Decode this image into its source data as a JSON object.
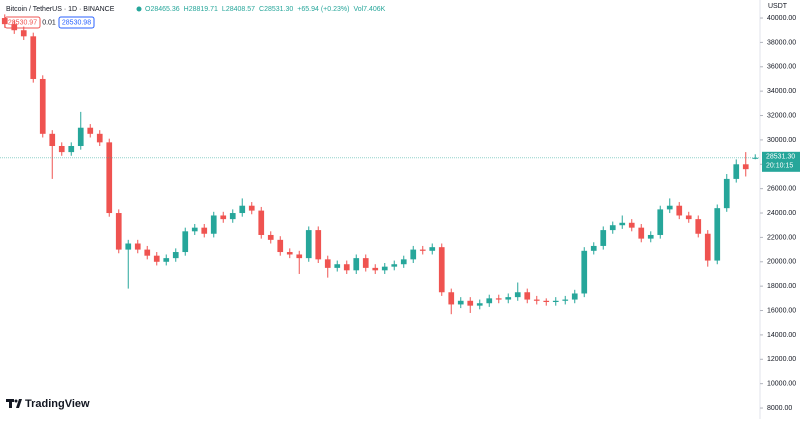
{
  "chart_data": {
    "type": "candlestick",
    "title": "Bitcoin / TetherUS · 1D · BINANCE",
    "ohlc_legend": [
      "O28465.36",
      "H28819.71",
      "L28408.57",
      "C28531.30",
      "+65.94 (+0.23%)",
      "Vol7.406K"
    ],
    "bid": "28530.97",
    "spread": "0.01",
    "ask": "28530.98",
    "close_label": "28531.30",
    "countdown": "20:10:15",
    "currency": "USDT",
    "brand": "TradingView",
    "up_color": "#26a69a",
    "down_color": "#ef5350",
    "ylim": [
      7100,
      41480
    ],
    "yticks": [
      {
        "value": 8000,
        "label": "8000.00"
      },
      {
        "value": 10000,
        "label": "10000.00"
      },
      {
        "value": 12000,
        "label": "12000.00"
      },
      {
        "value": 14000,
        "label": "14000.00"
      },
      {
        "value": 16000,
        "label": "16000.00"
      },
      {
        "value": 18000,
        "label": "18000.00"
      },
      {
        "value": 20000,
        "label": "20000.00"
      },
      {
        "value": 22000,
        "label": "22000.00"
      },
      {
        "value": 24000,
        "label": "24000.00"
      },
      {
        "value": 26000,
        "label": "26000.00"
      },
      {
        "value": 28000,
        "label": "28000.00"
      },
      {
        "value": 30000,
        "label": "30000.00"
      },
      {
        "value": 32000,
        "label": "32000.00"
      },
      {
        "value": 34000,
        "label": "34000.00"
      },
      {
        "value": 36000,
        "label": "36000.00"
      },
      {
        "value": 38000,
        "label": "38000.00"
      },
      {
        "value": 40000,
        "label": "40000.00"
      }
    ],
    "open": [
      40000,
      39500,
      39000,
      38500,
      35000,
      30500,
      29500,
      29000,
      29500,
      31000,
      30500,
      29800,
      24000,
      21000,
      21500,
      21000,
      20500,
      20000,
      20300,
      20800,
      22500,
      22800,
      22300,
      23800,
      23500,
      24000,
      24600,
      24200,
      22200,
      21800,
      20800,
      20600,
      20300,
      22600,
      20200,
      19500,
      19800,
      19300,
      20300,
      19500,
      19300,
      19600,
      19800,
      20200,
      21000,
      20900,
      21200,
      17500,
      16500,
      16800,
      16400,
      16600,
      17000,
      16900,
      17100,
      17500,
      16900,
      16800,
      16700,
      16800,
      16900,
      17400,
      20900,
      21300,
      22600,
      23000,
      23200,
      22800,
      21900,
      22200,
      24300,
      24600,
      23800,
      23500,
      22300,
      20100,
      24400,
      26800,
      28000,
      28465.36
    ],
    "high": [
      40300,
      39800,
      39300,
      38800,
      35300,
      30800,
      29800,
      29800,
      32300,
      31300,
      30800,
      30100,
      24300,
      21800,
      21800,
      21300,
      20800,
      20600,
      21100,
      22800,
      23100,
      23100,
      24100,
      24100,
      24300,
      25200,
      24900,
      24500,
      22500,
      22100,
      21100,
      20900,
      22900,
      22900,
      20500,
      20100,
      20100,
      20600,
      20600,
      19800,
      19900,
      20100,
      20500,
      21300,
      21300,
      21500,
      21500,
      17800,
      17100,
      17100,
      16900,
      17300,
      17300,
      17400,
      18300,
      17800,
      17200,
      17000,
      17100,
      17200,
      17700,
      21200,
      21600,
      22900,
      23300,
      23800,
      23500,
      23100,
      22500,
      24600,
      25200,
      24900,
      24100,
      23800,
      22600,
      24700,
      27200,
      28400,
      29000,
      28819.71
    ],
    "low": [
      39200,
      38700,
      38200,
      34700,
      30200,
      26800,
      28700,
      28700,
      29200,
      30200,
      29500,
      23700,
      20700,
      17800,
      20700,
      20200,
      19700,
      19700,
      20000,
      20500,
      22200,
      22000,
      22000,
      23200,
      23200,
      23700,
      23900,
      21900,
      21500,
      20500,
      20300,
      19000,
      20000,
      19900,
      18700,
      19200,
      19000,
      19000,
      19200,
      19000,
      19000,
      19300,
      19500,
      19900,
      20600,
      20600,
      17200,
      15700,
      16200,
      15800,
      16100,
      16300,
      16600,
      16600,
      16800,
      16600,
      16500,
      16400,
      16400,
      16500,
      16600,
      17100,
      20600,
      21000,
      22300,
      22700,
      22500,
      21600,
      21600,
      21900,
      24000,
      23500,
      23200,
      22000,
      19600,
      19800,
      24100,
      26500,
      27000,
      28408.57
    ],
    "close": [
      39500,
      39000,
      38500,
      35000,
      30500,
      29500,
      29000,
      29500,
      31000,
      30500,
      29800,
      24000,
      21000,
      21500,
      21000,
      20500,
      20000,
      20300,
      20800,
      22500,
      22800,
      22300,
      23800,
      23500,
      24000,
      24600,
      24200,
      22200,
      21800,
      20800,
      20600,
      20300,
      22600,
      20200,
      19500,
      19800,
      19300,
      20300,
      19500,
      19300,
      19600,
      19800,
      20200,
      21000,
      20900,
      21200,
      17500,
      16500,
      16800,
      16400,
      16600,
      17000,
      16900,
      17100,
      17500,
      16900,
      16800,
      16700,
      16800,
      16900,
      17400,
      20900,
      21300,
      22600,
      23000,
      23200,
      22800,
      21900,
      22200,
      24300,
      24600,
      23800,
      23500,
      22300,
      20100,
      24400,
      26800,
      28000,
      27600,
      28531.3
    ]
  }
}
